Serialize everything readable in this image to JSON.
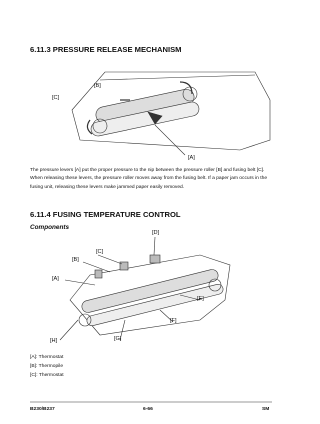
{
  "section1": {
    "heading": "6.11.3  PRESSURE RELEASE MECHANISM",
    "paragraph": "The pressure levers [A] put the proper pressure to the nip between the pressure roller [B] and fusing belt [C]. When releasing these levers, the pressure roller moves away from the fusing belt. If a paper jam occurs in the fusing unit, releasing these levers make jammed paper easily removed."
  },
  "figure1": {
    "labels": [
      "[B]",
      "[C]",
      "[A]"
    ]
  },
  "section2": {
    "heading": "6.11.4  FUSING TEMPERATURE CONTROL",
    "subheading": "Components"
  },
  "figure2": {
    "labels": [
      "[D]",
      "[C]",
      "[B]",
      "[A]",
      "[E]",
      "[F]",
      "[G]",
      "[H]"
    ]
  },
  "list": [
    "[A]: Thermostat",
    "[B]: Thermopile",
    "[C]: Thermostat"
  ],
  "footer": {
    "left": "B230/B237",
    "center": "6-66",
    "right": "SM"
  }
}
